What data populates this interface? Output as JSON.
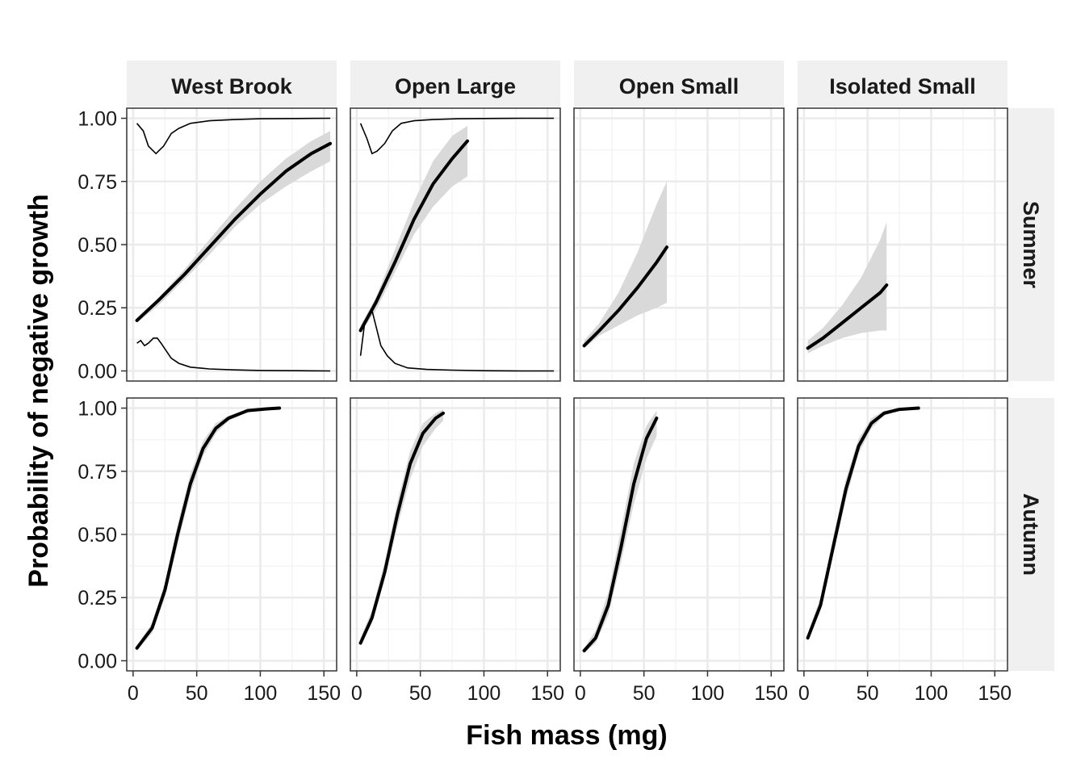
{
  "chart_data": {
    "type": "line",
    "xlabel": "Fish mass (mg)",
    "ylabel": "Probability of negative growth",
    "xlim": [
      -5,
      160
    ],
    "ylim": [
      -0.04,
      1.04
    ],
    "x_ticks": [
      0,
      50,
      100,
      150
    ],
    "y_ticks": [
      0.0,
      0.25,
      0.5,
      0.75,
      1.0
    ],
    "y_tick_labels": [
      "0.00",
      "0.25",
      "0.50",
      "0.75",
      "1.00"
    ],
    "grid": true,
    "columns": [
      "West Brook",
      "Open Large",
      "Open Small",
      "Isolated Small"
    ],
    "rows": [
      "Summer",
      "Autumn"
    ],
    "panels": [
      {
        "row": "Summer",
        "column": "West Brook",
        "fit": {
          "x": [
            3,
            20,
            40,
            60,
            80,
            100,
            120,
            140,
            155
          ],
          "y": [
            0.2,
            0.28,
            0.38,
            0.49,
            0.6,
            0.7,
            0.79,
            0.86,
            0.9
          ]
        },
        "ci_lower": [
          0.19,
          0.26,
          0.36,
          0.46,
          0.57,
          0.66,
          0.73,
          0.79,
          0.83
        ],
        "ci_upper": [
          0.21,
          0.29,
          0.4,
          0.52,
          0.64,
          0.75,
          0.84,
          0.91,
          0.95
        ],
        "density_low": {
          "x": [
            3,
            6,
            9,
            12,
            16,
            19,
            22,
            26,
            30,
            36,
            45,
            60,
            80,
            100,
            130,
            155
          ],
          "y": [
            0.11,
            0.12,
            0.1,
            0.11,
            0.13,
            0.13,
            0.11,
            0.08,
            0.05,
            0.03,
            0.015,
            0.008,
            0.004,
            0.002,
            0.001,
            0.0
          ]
        },
        "density_high": {
          "x": [
            3,
            8,
            12,
            18,
            24,
            30,
            36,
            45,
            60,
            80,
            100,
            130,
            155
          ],
          "y": [
            0.98,
            0.95,
            0.89,
            0.86,
            0.89,
            0.94,
            0.96,
            0.98,
            0.99,
            0.995,
            0.998,
            0.999,
            1.0
          ]
        }
      },
      {
        "row": "Summer",
        "column": "Open Large",
        "fit": {
          "x": [
            3,
            15,
            30,
            45,
            60,
            75,
            87
          ],
          "y": [
            0.16,
            0.27,
            0.43,
            0.6,
            0.74,
            0.84,
            0.91
          ]
        },
        "ci_lower": [
          0.15,
          0.24,
          0.39,
          0.54,
          0.65,
          0.73,
          0.77
        ],
        "ci_upper": [
          0.18,
          0.29,
          0.48,
          0.67,
          0.83,
          0.93,
          0.97
        ],
        "density_low": {
          "x": [
            3,
            6,
            9,
            12,
            15,
            19,
            24,
            30,
            40,
            55,
            75,
            100,
            130,
            155
          ],
          "y": [
            0.06,
            0.18,
            0.22,
            0.24,
            0.18,
            0.1,
            0.06,
            0.03,
            0.012,
            0.006,
            0.003,
            0.001,
            0.0,
            0.0
          ]
        },
        "density_high": {
          "x": [
            3,
            8,
            12,
            16,
            22,
            28,
            35,
            45,
            60,
            80,
            100,
            130,
            155
          ],
          "y": [
            0.98,
            0.92,
            0.86,
            0.87,
            0.9,
            0.95,
            0.98,
            0.99,
            0.995,
            0.998,
            0.999,
            1.0,
            1.0
          ]
        }
      },
      {
        "row": "Summer",
        "column": "Open Small",
        "fit": {
          "x": [
            3,
            15,
            30,
            45,
            60,
            68
          ],
          "y": [
            0.1,
            0.16,
            0.24,
            0.33,
            0.43,
            0.49
          ]
        },
        "ci_lower": [
          0.09,
          0.14,
          0.18,
          0.22,
          0.25,
          0.27
        ],
        "ci_upper": [
          0.12,
          0.19,
          0.31,
          0.47,
          0.66,
          0.75
        ]
      },
      {
        "row": "Summer",
        "column": "Isolated Small",
        "fit": {
          "x": [
            3,
            15,
            30,
            45,
            60,
            65
          ],
          "y": [
            0.09,
            0.13,
            0.19,
            0.25,
            0.31,
            0.34
          ]
        },
        "ci_lower": [
          0.07,
          0.1,
          0.13,
          0.15,
          0.16,
          0.16
        ],
        "ci_upper": [
          0.12,
          0.17,
          0.26,
          0.37,
          0.52,
          0.59
        ]
      },
      {
        "row": "Autumn",
        "column": "West Brook",
        "fit": {
          "x": [
            3,
            15,
            25,
            35,
            45,
            55,
            65,
            75,
            90,
            105,
            115
          ],
          "y": [
            0.05,
            0.13,
            0.28,
            0.5,
            0.7,
            0.84,
            0.92,
            0.96,
            0.99,
            0.997,
            1.0
          ]
        },
        "ci_lower": [
          0.04,
          0.11,
          0.25,
          0.46,
          0.66,
          0.81,
          0.9,
          0.95,
          0.985,
          0.995,
          0.998
        ],
        "ci_upper": [
          0.06,
          0.15,
          0.31,
          0.54,
          0.74,
          0.87,
          0.94,
          0.97,
          0.995,
          0.999,
          1.0
        ]
      },
      {
        "row": "Autumn",
        "column": "Open Large",
        "fit": {
          "x": [
            3,
            12,
            22,
            32,
            42,
            52,
            62,
            68
          ],
          "y": [
            0.07,
            0.17,
            0.35,
            0.58,
            0.78,
            0.9,
            0.96,
            0.98
          ]
        },
        "ci_lower": [
          0.06,
          0.15,
          0.32,
          0.53,
          0.72,
          0.85,
          0.92,
          0.95
        ],
        "ci_upper": [
          0.09,
          0.2,
          0.39,
          0.63,
          0.83,
          0.94,
          0.98,
          0.995
        ]
      },
      {
        "row": "Autumn",
        "column": "Open Small",
        "fit": {
          "x": [
            3,
            12,
            22,
            32,
            42,
            52,
            60
          ],
          "y": [
            0.04,
            0.09,
            0.22,
            0.45,
            0.7,
            0.88,
            0.96
          ]
        },
        "ci_lower": [
          0.03,
          0.07,
          0.18,
          0.39,
          0.62,
          0.8,
          0.89
        ],
        "ci_upper": [
          0.05,
          0.12,
          0.27,
          0.52,
          0.78,
          0.93,
          0.99
        ]
      },
      {
        "row": "Autumn",
        "column": "Isolated Small",
        "fit": {
          "x": [
            3,
            13,
            23,
            33,
            43,
            53,
            63,
            75,
            90
          ],
          "y": [
            0.09,
            0.22,
            0.45,
            0.68,
            0.85,
            0.94,
            0.98,
            0.995,
            1.0
          ]
        },
        "ci_lower": [
          0.08,
          0.2,
          0.42,
          0.64,
          0.82,
          0.92,
          0.97,
          0.99,
          0.998
        ],
        "ci_upper": [
          0.11,
          0.25,
          0.49,
          0.72,
          0.88,
          0.96,
          0.99,
          0.998,
          1.0
        ]
      }
    ]
  }
}
